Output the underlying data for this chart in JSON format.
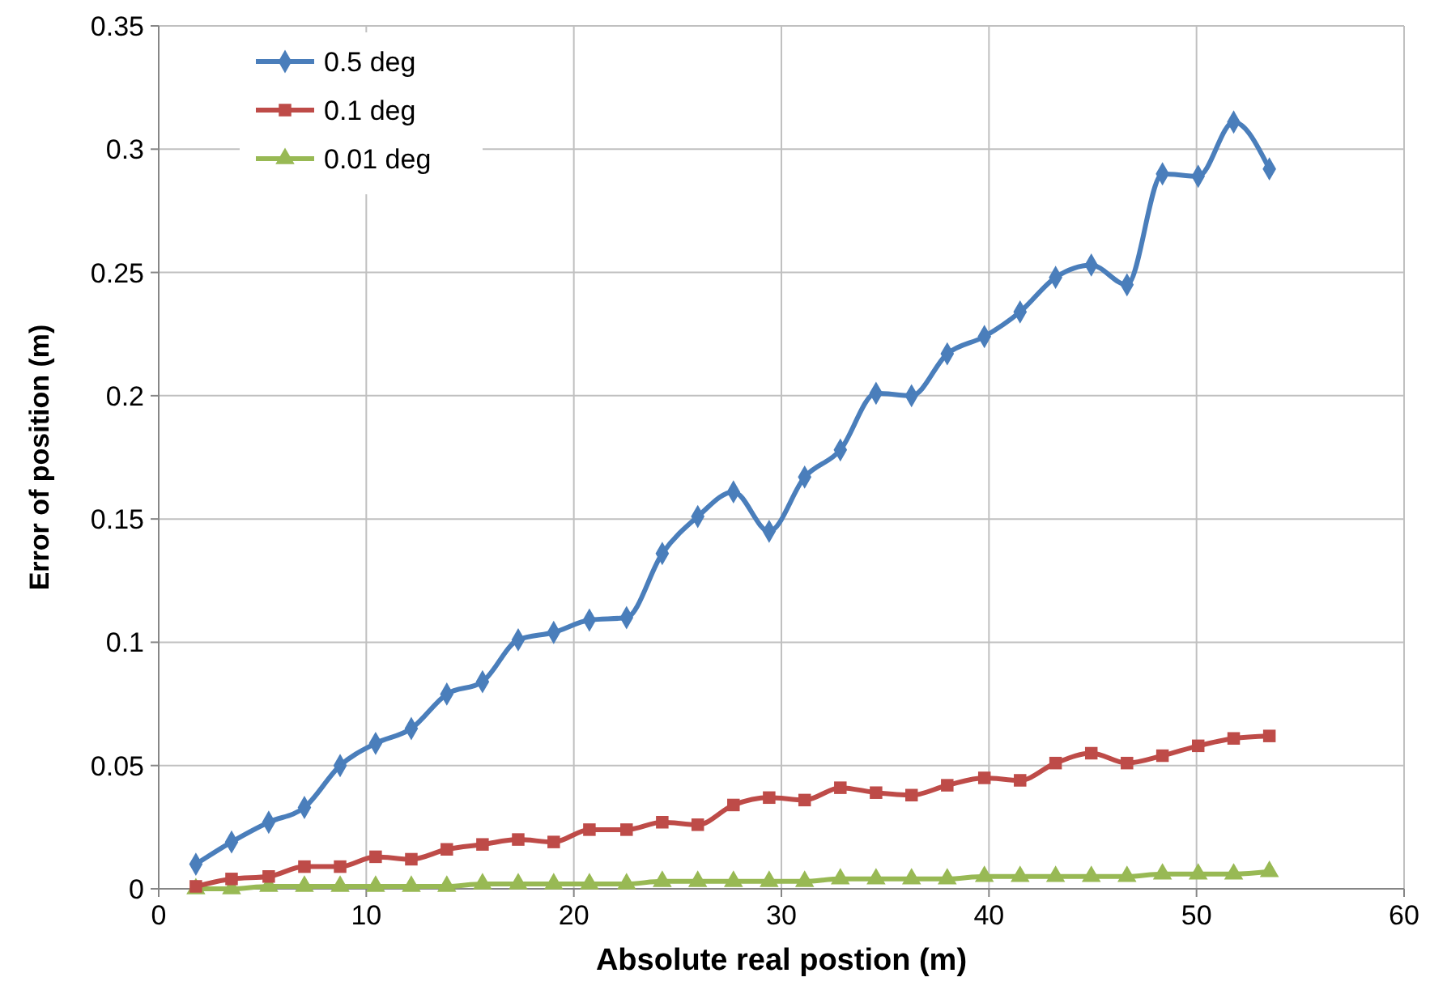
{
  "chart_data": {
    "type": "line",
    "xlabel": "Absolute real postion (m)",
    "ylabel": "Error of position  (m)",
    "x": [
      1.79,
      3.51,
      5.3,
      7.02,
      8.74,
      10.45,
      12.17,
      13.88,
      15.6,
      17.32,
      19.03,
      20.75,
      22.54,
      24.26,
      25.97,
      27.69,
      29.41,
      31.12,
      32.84,
      34.56,
      36.27,
      37.99,
      39.78,
      41.5,
      43.21,
      44.93,
      46.65,
      48.36,
      50.08,
      51.79,
      53.51
    ],
    "series": [
      {
        "name": "0.5 deg",
        "color": "#4a7ebb",
        "marker": "diamond",
        "values": [
          0.01,
          0.019,
          0.027,
          0.033,
          0.05,
          0.059,
          0.065,
          0.079,
          0.084,
          0.101,
          0.104,
          0.109,
          0.11,
          0.136,
          0.151,
          0.161,
          0.145,
          0.167,
          0.178,
          0.201,
          0.2,
          0.217,
          0.224,
          0.234,
          0.248,
          0.253,
          0.245,
          0.29,
          0.289,
          0.311,
          0.292
        ]
      },
      {
        "name": "0.1 deg",
        "color": "#be4b48",
        "marker": "square",
        "values": [
          0.001,
          0.004,
          0.005,
          0.009,
          0.009,
          0.013,
          0.012,
          0.016,
          0.018,
          0.02,
          0.019,
          0.024,
          0.024,
          0.027,
          0.026,
          0.034,
          0.037,
          0.036,
          0.041,
          0.039,
          0.038,
          0.042,
          0.045,
          0.044,
          0.051,
          0.055,
          0.051,
          0.054,
          0.058,
          0.061,
          0.062
        ]
      },
      {
        "name": "0.01 deg",
        "color": "#98b954",
        "marker": "triangle",
        "values": [
          0,
          0,
          0.001,
          0.001,
          0.001,
          0.001,
          0.001,
          0.001,
          0.002,
          0.002,
          0.002,
          0.002,
          0.002,
          0.003,
          0.003,
          0.003,
          0.003,
          0.003,
          0.004,
          0.004,
          0.004,
          0.004,
          0.005,
          0.005,
          0.005,
          0.005,
          0.005,
          0.006,
          0.006,
          0.006,
          0.007
        ]
      }
    ],
    "xlim": [
      0,
      60
    ],
    "xticks": [
      0,
      10,
      20,
      30,
      40,
      50,
      60
    ],
    "ylim": [
      0,
      0.35
    ],
    "yticks": [
      0,
      0.05,
      0.1,
      0.15,
      0.2,
      0.25,
      0.3,
      0.35
    ],
    "grid": true,
    "legend": "top left"
  }
}
